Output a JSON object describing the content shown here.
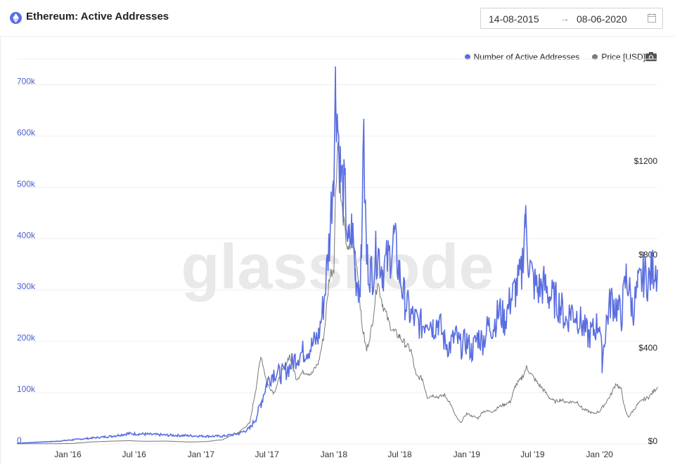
{
  "header": {
    "title": "Ethereum: Active Addresses",
    "icon": "ethereum-icon",
    "date_from": "14-08-2015",
    "date_to": "08-06-2020",
    "arrow": "→",
    "calendar_icon": "calendar-icon"
  },
  "legend": {
    "items": [
      {
        "label": "Number of Active Addresses",
        "color": "#5a6ee0"
      },
      {
        "label": "Price [USD]",
        "color": "#7a7a7a"
      }
    ],
    "camera_icon": "camera-icon"
  },
  "watermark": "glassnode",
  "chart_data": {
    "type": "line",
    "x_range": [
      "2015-08-14",
      "2020-06-08"
    ],
    "x_ticks": [
      "Jan '16",
      "Jul '16",
      "Jan '17",
      "Jul '17",
      "Jan '18",
      "Jul '18",
      "Jan '19",
      "Jul '19",
      "Jan '20"
    ],
    "x_tick_dates": [
      "2016-01-01",
      "2016-07-01",
      "2017-01-01",
      "2017-07-01",
      "2018-01-01",
      "2018-07-01",
      "2019-01-01",
      "2019-07-01",
      "2020-01-01"
    ],
    "y_left": {
      "ticks": [
        "0",
        "100k",
        "200k",
        "300k",
        "400k",
        "500k",
        "600k",
        "700k"
      ],
      "ylim": [
        0,
        750000
      ]
    },
    "y_right": {
      "ticks": [
        "$0",
        "$400",
        "$800",
        "$1200"
      ],
      "ylim": [
        0,
        1650
      ]
    },
    "series": [
      {
        "name": "Number of Active Addresses",
        "axis": "left",
        "color": "#5a6ee0",
        "x": [
          "2015-08-14",
          "2015-10-01",
          "2015-12-01",
          "2016-01-15",
          "2016-03-01",
          "2016-05-01",
          "2016-06-15",
          "2016-08-01",
          "2016-10-01",
          "2016-12-01",
          "2017-01-15",
          "2017-03-01",
          "2017-04-15",
          "2017-05-15",
          "2017-06-01",
          "2017-06-15",
          "2017-07-01",
          "2017-07-20",
          "2017-08-10",
          "2017-09-01",
          "2017-09-20",
          "2017-10-10",
          "2017-11-01",
          "2017-11-20",
          "2017-12-05",
          "2017-12-20",
          "2018-01-01",
          "2018-01-06",
          "2018-01-12",
          "2018-01-20",
          "2018-02-01",
          "2018-02-10",
          "2018-02-20",
          "2018-03-01",
          "2018-03-10",
          "2018-03-18",
          "2018-03-22",
          "2018-04-01",
          "2018-04-15",
          "2018-05-01",
          "2018-05-15",
          "2018-06-01",
          "2018-06-15",
          "2018-07-01",
          "2018-07-15",
          "2018-08-01",
          "2018-08-15",
          "2018-09-01",
          "2018-09-15",
          "2018-10-01",
          "2018-10-15",
          "2018-11-01",
          "2018-11-15",
          "2018-12-01",
          "2018-12-15",
          "2019-01-01",
          "2019-01-15",
          "2019-02-01",
          "2019-02-15",
          "2019-03-01",
          "2019-03-15",
          "2019-04-01",
          "2019-04-15",
          "2019-05-01",
          "2019-05-15",
          "2019-06-01",
          "2019-06-10",
          "2019-06-20",
          "2019-07-01",
          "2019-07-15",
          "2019-08-01",
          "2019-08-15",
          "2019-09-01",
          "2019-09-15",
          "2019-10-01",
          "2019-10-15",
          "2019-11-01",
          "2019-11-15",
          "2019-12-01",
          "2019-12-15",
          "2020-01-01",
          "2020-01-08",
          "2020-01-20",
          "2020-02-01",
          "2020-02-15",
          "2020-03-01",
          "2020-03-15",
          "2020-04-01",
          "2020-04-15",
          "2020-05-01",
          "2020-05-15",
          "2020-06-01",
          "2020-06-08"
        ],
        "values": [
          1000,
          3000,
          5000,
          8000,
          11000,
          15000,
          20000,
          19000,
          17000,
          16000,
          15000,
          15000,
          20000,
          30000,
          50000,
          80000,
          120000,
          140000,
          135000,
          150000,
          170000,
          180000,
          190000,
          210000,
          280000,
          400000,
          560000,
          710000,
          620000,
          520000,
          480000,
          380000,
          420000,
          330000,
          310000,
          350000,
          620000,
          360000,
          330000,
          380000,
          340000,
          360000,
          400000,
          330000,
          280000,
          250000,
          240000,
          230000,
          250000,
          230000,
          240000,
          200000,
          190000,
          210000,
          190000,
          200000,
          180000,
          210000,
          200000,
          230000,
          230000,
          260000,
          240000,
          280000,
          300000,
          330000,
          440000,
          360000,
          320000,
          300000,
          310000,
          290000,
          280000,
          270000,
          240000,
          260000,
          250000,
          230000,
          210000,
          220000,
          240000,
          160000,
          240000,
          280000,
          270000,
          250000,
          330000,
          260000,
          300000,
          330000,
          320000,
          350000,
          340000
        ]
      },
      {
        "name": "Price [USD]",
        "axis": "right",
        "color": "#7a7a7a",
        "x": [
          "2015-08-14",
          "2015-10-01",
          "2015-12-01",
          "2016-01-15",
          "2016-03-01",
          "2016-05-01",
          "2016-06-15",
          "2016-08-01",
          "2016-10-01",
          "2016-12-01",
          "2017-01-15",
          "2017-03-01",
          "2017-04-15",
          "2017-05-15",
          "2017-06-01",
          "2017-06-15",
          "2017-07-01",
          "2017-07-20",
          "2017-08-10",
          "2017-09-01",
          "2017-09-20",
          "2017-10-10",
          "2017-11-01",
          "2017-11-20",
          "2017-12-05",
          "2017-12-20",
          "2018-01-01",
          "2018-01-06",
          "2018-01-12",
          "2018-01-20",
          "2018-02-01",
          "2018-02-10",
          "2018-02-20",
          "2018-03-01",
          "2018-03-10",
          "2018-03-18",
          "2018-04-01",
          "2018-04-15",
          "2018-05-01",
          "2018-05-15",
          "2018-06-01",
          "2018-06-15",
          "2018-07-01",
          "2018-07-15",
          "2018-08-01",
          "2018-08-15",
          "2018-09-01",
          "2018-09-15",
          "2018-10-01",
          "2018-10-15",
          "2018-11-01",
          "2018-11-15",
          "2018-12-01",
          "2018-12-15",
          "2019-01-01",
          "2019-01-15",
          "2019-02-01",
          "2019-02-15",
          "2019-03-01",
          "2019-03-15",
          "2019-04-01",
          "2019-04-15",
          "2019-05-01",
          "2019-05-15",
          "2019-06-01",
          "2019-06-15",
          "2019-06-26",
          "2019-07-15",
          "2019-08-01",
          "2019-08-15",
          "2019-09-01",
          "2019-09-15",
          "2019-10-01",
          "2019-10-15",
          "2019-11-01",
          "2019-11-15",
          "2019-12-01",
          "2019-12-15",
          "2020-01-01",
          "2020-01-15",
          "2020-02-01",
          "2020-02-15",
          "2020-03-01",
          "2020-03-12",
          "2020-03-20",
          "2020-04-01",
          "2020-04-15",
          "2020-05-01",
          "2020-05-15",
          "2020-06-08"
        ],
        "values": [
          1,
          1,
          1,
          2,
          8,
          12,
          14,
          11,
          12,
          8,
          10,
          18,
          50,
          90,
          240,
          380,
          260,
          220,
          300,
          380,
          280,
          310,
          300,
          350,
          470,
          720,
          760,
          1100,
          1300,
          1050,
          900,
          820,
          870,
          820,
          700,
          520,
          400,
          500,
          700,
          600,
          520,
          480,
          460,
          430,
          400,
          290,
          280,
          200,
          210,
          200,
          210,
          180,
          120,
          90,
          130,
          120,
          110,
          140,
          140,
          140,
          160,
          170,
          180,
          250,
          280,
          330,
          300,
          260,
          230,
          200,
          180,
          190,
          180,
          180,
          180,
          150,
          140,
          130,
          140,
          170,
          210,
          260,
          230,
          140,
          115,
          140,
          170,
          190,
          200,
          245
        ]
      }
    ]
  }
}
